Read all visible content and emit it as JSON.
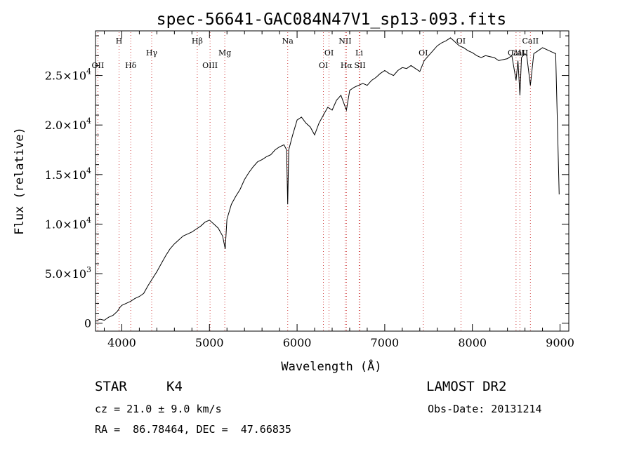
{
  "chart_data": {
    "type": "line",
    "title": "spec-56641-GAC084N47V1_sp13-093.fits",
    "xlabel": "Wavelength (Å)",
    "ylabel": "Flux (relative)",
    "xlim": [
      3700,
      9100
    ],
    "ylim": [
      -800,
      29500
    ],
    "x_ticks": [
      4000,
      5000,
      6000,
      7000,
      8000,
      9000
    ],
    "x_tick_labels": [
      "4000",
      "5000",
      "6000",
      "7000",
      "8000",
      "9000"
    ],
    "y_ticks": [
      0,
      5000,
      10000,
      15000,
      20000,
      25000
    ],
    "y_tick_labels": [
      {
        "mant": "0",
        "exp": ""
      },
      {
        "mant": "5.0×10",
        "exp": "3"
      },
      {
        "mant": "1.0×10",
        "exp": "4"
      },
      {
        "mant": "1.5×10",
        "exp": "4"
      },
      {
        "mant": "2.0×10",
        "exp": "4"
      },
      {
        "mant": "2.5×10",
        "exp": "4"
      }
    ],
    "grid": false,
    "series": [
      {
        "x": [
          3700,
          3750,
          3800,
          3850,
          3900,
          3950,
          3980,
          4000,
          4050,
          4100,
          4150,
          4200,
          4250,
          4300,
          4350,
          4400,
          4450,
          4500,
          4550,
          4600,
          4650,
          4700,
          4750,
          4800,
          4850,
          4900,
          4950,
          5000,
          5050,
          5100,
          5150,
          5180,
          5200,
          5250,
          5300,
          5350,
          5400,
          5450,
          5500,
          5550,
          5600,
          5650,
          5700,
          5750,
          5800,
          5850,
          5880,
          5893,
          5905,
          5950,
          6000,
          6050,
          6100,
          6150,
          6200,
          6250,
          6300,
          6350,
          6400,
          6450,
          6500,
          6563,
          6600,
          6650,
          6700,
          6750,
          6800,
          6850,
          6900,
          6950,
          7000,
          7050,
          7100,
          7150,
          7200,
          7250,
          7300,
          7350,
          7400,
          7450,
          7500,
          7550,
          7600,
          7650,
          7700,
          7750,
          7800,
          7850,
          7900,
          7950,
          8000,
          8050,
          8100,
          8150,
          8200,
          8250,
          8300,
          8350,
          8400,
          8450,
          8498,
          8520,
          8542,
          8560,
          8600,
          8620,
          8662,
          8700,
          8750,
          8800,
          8850,
          8900,
          8950,
          8990
        ],
        "y": [
          200,
          400,
          300,
          600,
          800,
          1200,
          1600,
          1800,
          2000,
          2200,
          2500,
          2700,
          3000,
          3800,
          4500,
          5200,
          6000,
          6800,
          7500,
          8000,
          8400,
          8800,
          9000,
          9200,
          9500,
          9800,
          10200,
          10400,
          10000,
          9600,
          8800,
          7500,
          10500,
          12000,
          12800,
          13500,
          14500,
          15200,
          15800,
          16300,
          16500,
          16800,
          17000,
          17500,
          17800,
          18000,
          17500,
          12000,
          17500,
          19000,
          20500,
          20800,
          20200,
          19800,
          19000,
          20200,
          21000,
          21800,
          21500,
          22500,
          23000,
          21500,
          23500,
          23800,
          24000,
          24200,
          24000,
          24500,
          24800,
          25200,
          25500,
          25200,
          25000,
          25500,
          25800,
          25700,
          26000,
          25700,
          25400,
          26500,
          27000,
          27500,
          28000,
          28300,
          28500,
          28800,
          28400,
          28000,
          27800,
          27500,
          27300,
          27000,
          26800,
          27000,
          26900,
          26800,
          26500,
          26600,
          26700,
          27000,
          24500,
          26500,
          23000,
          26800,
          27200,
          27000,
          24000,
          27200,
          27500,
          27800,
          27600,
          27400,
          27200,
          13000
        ]
      }
    ],
    "line_markers": [
      {
        "name": "OII",
        "x": 3727,
        "row": 3
      },
      {
        "name": "H",
        "x": 3969,
        "row": 0
      },
      {
        "name": "Hδ",
        "x": 4102,
        "row": 3
      },
      {
        "name": "Hγ",
        "x": 4341,
        "row": 2
      },
      {
        "name": "Hβ",
        "x": 4861,
        "row": 0
      },
      {
        "name": "OIII",
        "x": 5007,
        "row": 3
      },
      {
        "name": "Mg",
        "x": 5175,
        "row": 2
      },
      {
        "name": "Na",
        "x": 5893,
        "row": 0
      },
      {
        "name": "OI",
        "x": 6300,
        "row": 3
      },
      {
        "name": "OI",
        "x": 6364,
        "row": 2
      },
      {
        "name": "NII",
        "x": 6548,
        "row": 0
      },
      {
        "name": "Hα",
        "x": 6563,
        "row": 3
      },
      {
        "name": "Li",
        "x": 6708,
        "row": 2
      },
      {
        "name": "SII",
        "x": 6717,
        "row": 3
      },
      {
        "name": "OI",
        "x": 7440,
        "row": 2
      },
      {
        "name": "OI",
        "x": 7870,
        "row": 0
      },
      {
        "name": "CaII",
        "x": 8498,
        "row": 2
      },
      {
        "name": "CaII",
        "x": 8542,
        "row": 2
      },
      {
        "name": "CaII",
        "x": 8662,
        "row": 0
      }
    ]
  },
  "info": {
    "class_label": "STAR",
    "subclass": "K4",
    "survey": "LAMOST DR2",
    "cz": "cz = 21.0 ± 9.0 km/s",
    "obs_date": "Obs-Date: 20131214",
    "radec": "RA =  86.78464, DEC =  47.66835"
  }
}
